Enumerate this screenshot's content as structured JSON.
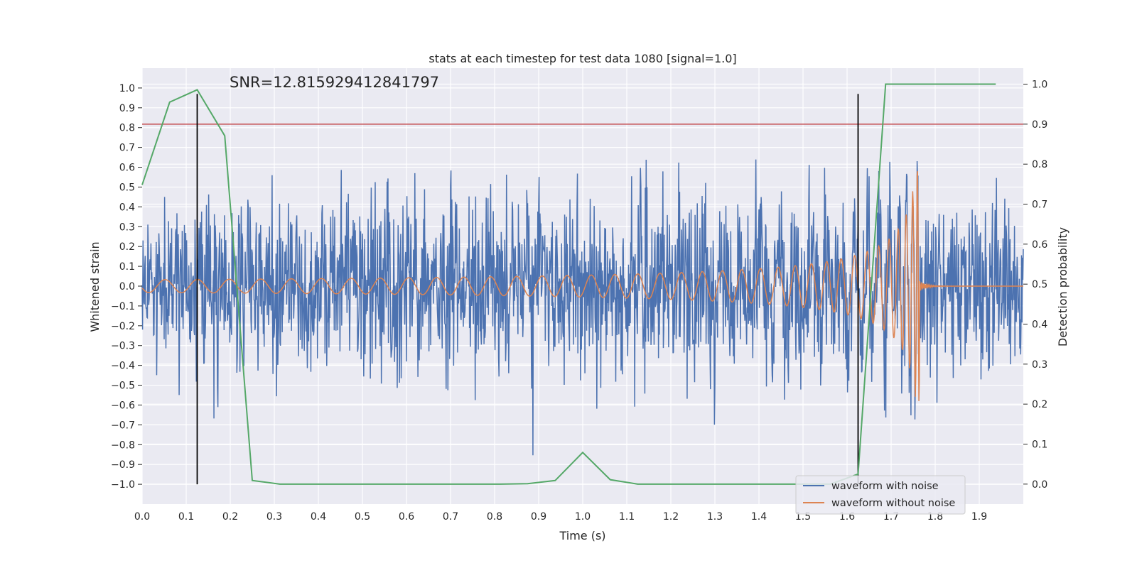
{
  "chart_data": {
    "type": "line",
    "title": "stats at each timestep for test data 1080 [signal=1.0]",
    "xlabel": "Time (s)",
    "ylabel": "Whitened strain",
    "y2label": "Detection probability",
    "annotation": "SNR=12.815929412841797",
    "xlim": [
      0.0,
      2.0
    ],
    "ylim": [
      -1.1,
      1.1
    ],
    "y2lim": [
      -0.05,
      1.04
    ],
    "xticks": [
      "0.0",
      "0.1",
      "0.2",
      "0.3",
      "0.4",
      "0.5",
      "0.6",
      "0.7",
      "0.8",
      "0.9",
      "1.0",
      "1.1",
      "1.2",
      "1.3",
      "1.4",
      "1.5",
      "1.6",
      "1.7",
      "1.8",
      "1.9"
    ],
    "yticks": [
      "1.0",
      "0.9",
      "0.8",
      "0.7",
      "0.6",
      "0.5",
      "0.4",
      "0.3",
      "0.2",
      "0.1",
      "0.0",
      "−0.1",
      "−0.2",
      "−0.3",
      "−0.4",
      "−0.5",
      "−0.6",
      "−0.7",
      "−0.8",
      "−0.9",
      "−1.0"
    ],
    "y2ticks": [
      "1.0",
      "0.9",
      "0.8",
      "0.7",
      "0.6",
      "0.5",
      "0.4",
      "0.3",
      "0.2",
      "0.1",
      "0.0"
    ],
    "threshold": 0.9,
    "vlines": [
      0.125,
      1.625
    ],
    "detection_probability": {
      "name": "detection probability",
      "x": [
        0.0,
        0.0625,
        0.125,
        0.1875,
        0.25,
        0.3125,
        0.375,
        0.4375,
        0.5,
        0.5625,
        0.625,
        0.6875,
        0.75,
        0.8125,
        0.875,
        0.9375,
        1.0,
        1.0625,
        1.125,
        1.1875,
        1.25,
        1.3125,
        1.375,
        1.4375,
        1.5,
        1.5625,
        1.625,
        1.6875,
        1.75,
        1.8125,
        1.875,
        1.9375
      ],
      "values": [
        0.748,
        0.955,
        0.986,
        0.871,
        0.009,
        0.0,
        0.0,
        0.0,
        0.0,
        0.0,
        0.0,
        0.0,
        0.0,
        0.0,
        0.001,
        0.009,
        0.079,
        0.011,
        0.0,
        0.0,
        0.0,
        0.0,
        0.0,
        0.0,
        0.0,
        0.0,
        0.025,
        1.0,
        1.0,
        1.0,
        1.0,
        1.0
      ]
    },
    "series": [
      {
        "name": "waveform with noise",
        "color": "#4c72b0",
        "description": "whitened noisy strain, approx within [-1.0, 0.83]"
      },
      {
        "name": "waveform without noise",
        "color": "#dd8452",
        "description": "chirp signal, amplitude growing from ~0.03 to ~0.57, merger near 1.76 s"
      }
    ],
    "legend": [
      "waveform with noise",
      "waveform without noise"
    ],
    "legend_position": "lower-right",
    "colors": {
      "background": "#eaeaf2",
      "grid": "#ffffff",
      "noisy": "#4c72b0",
      "clean": "#dd8452",
      "probability": "#55a868",
      "threshold": "#c44e52",
      "vline": "#000000"
    }
  }
}
